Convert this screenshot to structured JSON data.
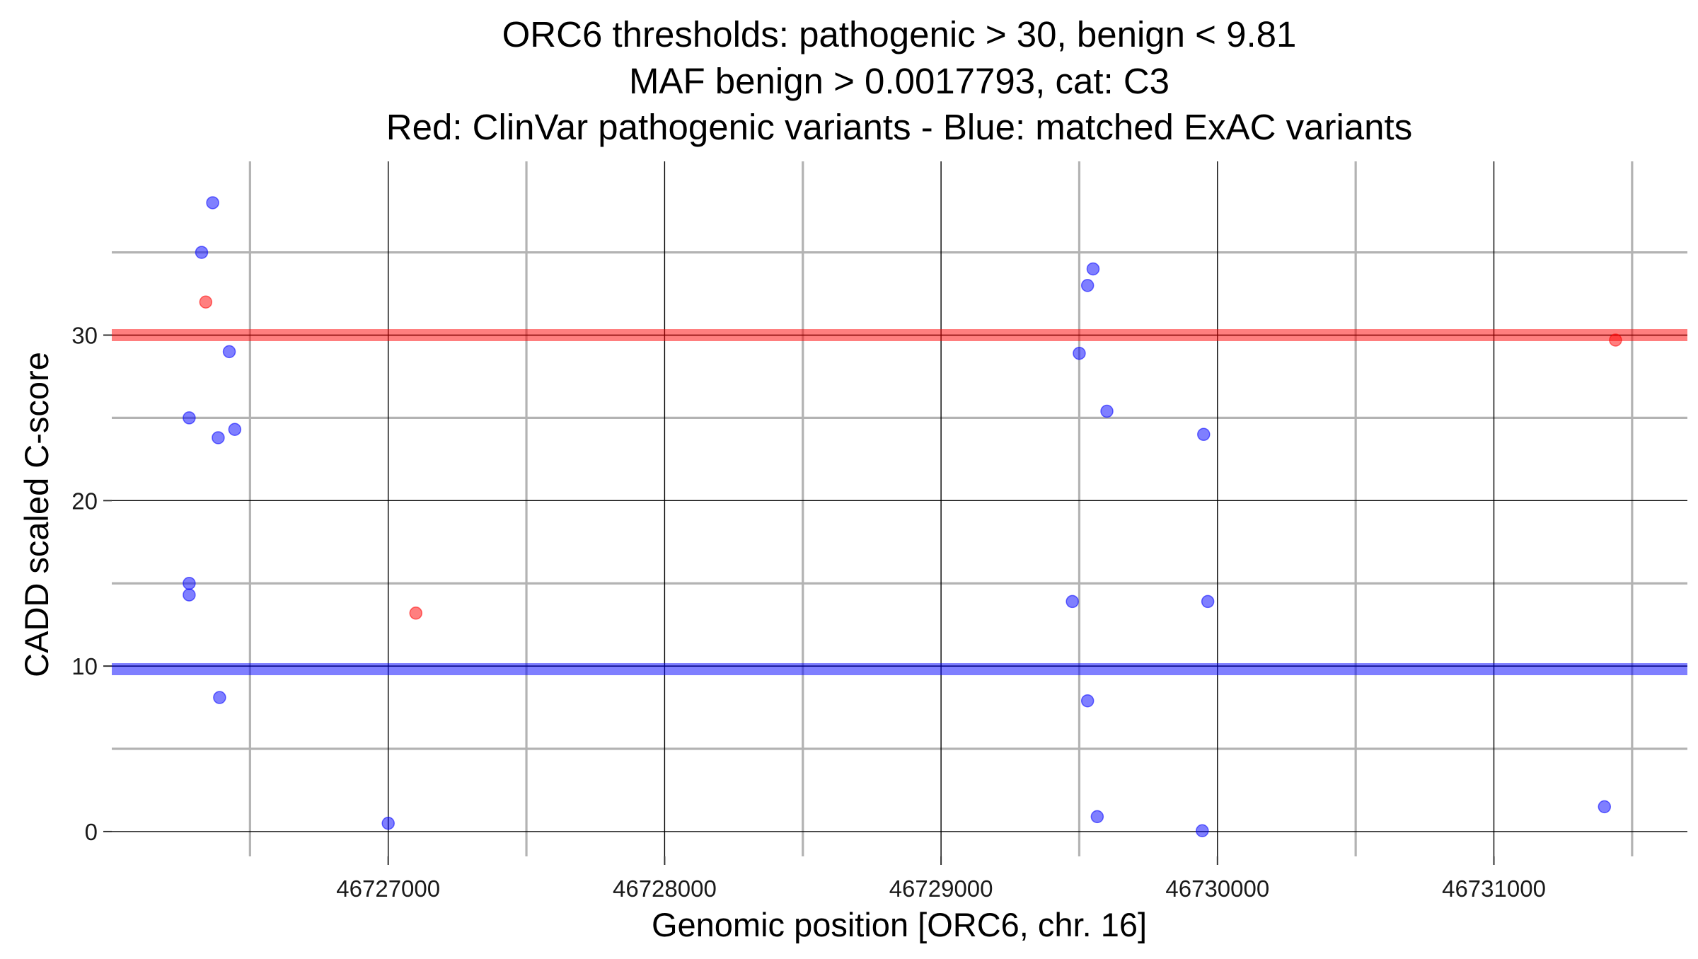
{
  "chart_data": {
    "type": "scatter",
    "title_lines": [
      "ORC6 thresholds: pathogenic > 30, benign < 9.81",
      "MAF benign > 0.0017793, cat: C3",
      "Red: ClinVar pathogenic variants - Blue: matched ExAC variants"
    ],
    "xlabel": "Genomic position [ORC6, chr. 16]",
    "ylabel": "CADD scaled C-score",
    "xlim": [
      46726000,
      46731700
    ],
    "ylim": [
      -1.5,
      40.5
    ],
    "x_major_ticks": [
      46727000,
      46728000,
      46729000,
      46730000,
      46731000
    ],
    "x_tick_labels": [
      "46727000",
      "46728000",
      "46729000",
      "46730000",
      "46731000"
    ],
    "x_minor_lines": [
      46726500,
      46727500,
      46728500,
      46729500,
      46730500,
      46731500
    ],
    "y_major_ticks": [
      0,
      10,
      20,
      30
    ],
    "y_tick_labels": [
      "0",
      "10",
      "20",
      "30"
    ],
    "y_minor_lines": [
      5,
      15,
      25,
      35
    ],
    "thresholds": [
      {
        "name": "pathogenic",
        "value": 30,
        "color": "#ff0000"
      },
      {
        "name": "benign",
        "value": 9.81,
        "color": "#0000ff"
      }
    ],
    "series": [
      {
        "name": "ClinVar pathogenic variants",
        "color": "#ff0000",
        "points": [
          {
            "x": 46726340,
            "y": 32
          },
          {
            "x": 46727100,
            "y": 13.2
          },
          {
            "x": 46731440,
            "y": 29.7
          }
        ]
      },
      {
        "name": "matched ExAC variants",
        "color": "#0000ff",
        "points": [
          {
            "x": 46726365,
            "y": 38
          },
          {
            "x": 46726325,
            "y": 35
          },
          {
            "x": 46726425,
            "y": 29
          },
          {
            "x": 46726280,
            "y": 25
          },
          {
            "x": 46726385,
            "y": 23.8
          },
          {
            "x": 46726445,
            "y": 24.3
          },
          {
            "x": 46726280,
            "y": 15
          },
          {
            "x": 46726280,
            "y": 14.3
          },
          {
            "x": 46726390,
            "y": 8.1
          },
          {
            "x": 46727000,
            "y": 0.5
          },
          {
            "x": 46729550,
            "y": 34
          },
          {
            "x": 46729530,
            "y": 33
          },
          {
            "x": 46729500,
            "y": 28.9
          },
          {
            "x": 46729600,
            "y": 25.4
          },
          {
            "x": 46729950,
            "y": 24
          },
          {
            "x": 46729475,
            "y": 13.9
          },
          {
            "x": 46729965,
            "y": 13.9
          },
          {
            "x": 46729530,
            "y": 7.9
          },
          {
            "x": 46729565,
            "y": 0.9
          },
          {
            "x": 46729945,
            "y": 0.05
          },
          {
            "x": 46731400,
            "y": 1.5
          }
        ]
      }
    ]
  }
}
